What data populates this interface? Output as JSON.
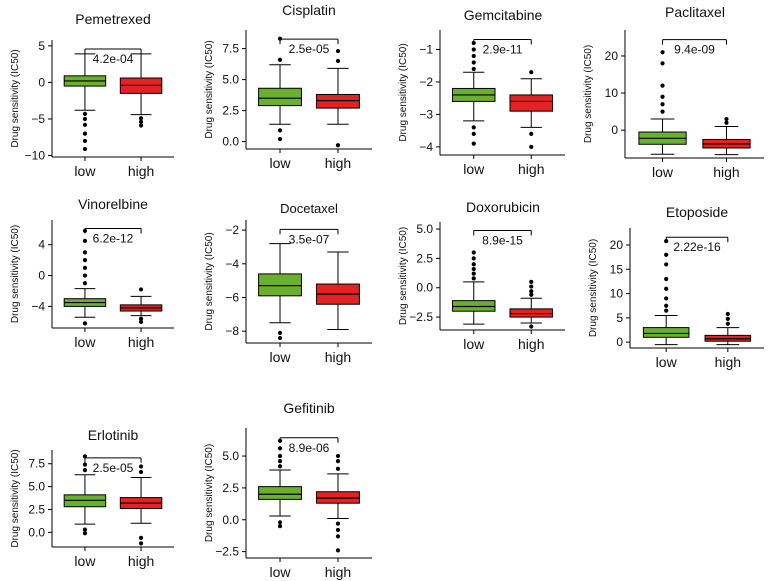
{
  "figure": {
    "ylabel": "Drug sensitivity (IC50)",
    "group_labels": [
      "low",
      "high"
    ],
    "colors": {
      "low": "#6aaf2e",
      "high": "#e32221"
    }
  },
  "chart_data": [
    {
      "type": "box",
      "title": "Pemetrexed",
      "pvalue": "4.2e-04",
      "categories": [
        "low",
        "high"
      ],
      "ylabel": "Drug sensitivity (IC50)",
      "yticks": [
        5,
        0,
        -5,
        -10
      ],
      "ytick_labels": [
        "5",
        "0",
        "−5",
        "−10"
      ],
      "ylim": [
        -10.2,
        5.8
      ],
      "boxes": [
        {
          "group": "low",
          "q1": -0.5,
          "median": 0.2,
          "q3": 0.9,
          "whisker_low": -3.8,
          "whisker_high": 3.9,
          "outliers": [
            -4.3,
            -5,
            -5.8,
            -7,
            -8,
            -9.1
          ]
        },
        {
          "group": "high",
          "q1": -1.5,
          "median": -0.4,
          "q3": 0.6,
          "whisker_low": -4.4,
          "whisker_high": 3.9,
          "outliers": [
            -4.9,
            -5.4,
            -5.9
          ]
        }
      ]
    },
    {
      "type": "box",
      "title": "Cisplatin",
      "pvalue": "2.5e-05",
      "categories": [
        "low",
        "high"
      ],
      "ylabel": "Drug sensitivity (IC50)",
      "yticks": [
        7.5,
        5.0,
        2.5,
        0.0
      ],
      "ytick_labels": [
        "7.5",
        "5.0",
        "2.5",
        "0.0"
      ],
      "ylim": [
        -0.6,
        9
      ],
      "boxes": [
        {
          "group": "low",
          "q1": 2.9,
          "median": 3.5,
          "q3": 4.3,
          "whisker_low": 1.4,
          "whisker_high": 6.2,
          "outliers": [
            6.6,
            8.3,
            0.9,
            0.2
          ]
        },
        {
          "group": "high",
          "q1": 2.7,
          "median": 3.3,
          "q3": 3.8,
          "whisker_low": 1.4,
          "whisker_high": 5.9,
          "outliers": [
            6.5,
            7.3,
            -0.3
          ]
        }
      ]
    },
    {
      "type": "box",
      "title": "Gemcitabine",
      "pvalue": "2.9e-11",
      "categories": [
        "low",
        "high"
      ],
      "ylabel": "Drug sensitivity (IC50)",
      "yticks": [
        -1,
        -2,
        -3,
        -4
      ],
      "ytick_labels": [
        "−1",
        "−2",
        "−3",
        "−4"
      ],
      "ylim": [
        -4.25,
        -0.4
      ],
      "boxes": [
        {
          "group": "low",
          "q1": -2.6,
          "median": -2.4,
          "q3": -2.2,
          "whisker_low": -3.2,
          "whisker_high": -1.7,
          "outliers": [
            -1.6,
            -1.4,
            -1.2,
            -1.0,
            -0.8,
            -3.4,
            -3.6,
            -3.9
          ]
        },
        {
          "group": "high",
          "q1": -2.9,
          "median": -2.6,
          "q3": -2.4,
          "whisker_low": -3.4,
          "whisker_high": -1.9,
          "outliers": [
            -1.7,
            -3.6,
            -4.0
          ]
        }
      ]
    },
    {
      "type": "box",
      "title": "Paclitaxel",
      "pvalue": "9.4e-09",
      "categories": [
        "low",
        "high"
      ],
      "ylabel": "Drug sensitivity (IC50)",
      "yticks": [
        20,
        10,
        0
      ],
      "ytick_labels": [
        "20",
        "10",
        "0"
      ],
      "ylim": [
        -7.5,
        27
      ],
      "boxes": [
        {
          "group": "low",
          "q1": -3.8,
          "median": -2.2,
          "q3": -0.5,
          "whisker_low": -6.5,
          "whisker_high": 3,
          "outliers": [
            5,
            7,
            9,
            12,
            18,
            21
          ]
        },
        {
          "group": "high",
          "q1": -4.8,
          "median": -3.7,
          "q3": -2.5,
          "whisker_low": -6.6,
          "whisker_high": 1,
          "outliers": [
            2,
            3
          ]
        }
      ]
    },
    {
      "type": "box",
      "title": "Vinorelbine",
      "pvalue": "6.2e-12",
      "categories": [
        "low",
        "high"
      ],
      "ylabel": "Drug sensitivity (IC50)",
      "yticks": [
        4,
        0,
        -4
      ],
      "ytick_labels": [
        "4",
        "0",
        "−4"
      ],
      "ylim": [
        -6.8,
        7.2
      ],
      "boxes": [
        {
          "group": "low",
          "q1": -4.0,
          "median": -3.5,
          "q3": -3.0,
          "whisker_low": -5.4,
          "whisker_high": -1.7,
          "outliers": [
            -1,
            0,
            1,
            2,
            3,
            4.5,
            5.8,
            -6.2
          ]
        },
        {
          "group": "high",
          "q1": -4.6,
          "median": -4.2,
          "q3": -3.8,
          "whisker_low": -5.2,
          "whisker_high": -2.7,
          "outliers": [
            -1.8,
            -5.6,
            -6.0
          ]
        }
      ]
    },
    {
      "type": "box",
      "title": "Docetaxel",
      "pvalue": "3.5e-07",
      "categories": [
        "low",
        "high"
      ],
      "ylabel": "Drug sensitivity (IC50)",
      "yticks": [
        -2,
        -4,
        -6,
        -8
      ],
      "ytick_labels": [
        "−2",
        "−4",
        "−6",
        "−8"
      ],
      "ylim": [
        -8.7,
        -1.4
      ],
      "boxes": [
        {
          "group": "low",
          "q1": -5.9,
          "median": -5.3,
          "q3": -4.6,
          "whisker_low": -7.5,
          "whisker_high": -2.8,
          "outliers": [
            -8.1,
            -8.4
          ]
        },
        {
          "group": "high",
          "q1": -6.4,
          "median": -5.8,
          "q3": -5.2,
          "whisker_low": -7.9,
          "whisker_high": -3.3,
          "outliers": []
        }
      ]
    },
    {
      "type": "box",
      "title": "Doxorubicin",
      "pvalue": "8.9e-15",
      "categories": [
        "low",
        "high"
      ],
      "ylabel": "Drug sensitivity (IC50)",
      "yticks": [
        5.0,
        2.5,
        0.0,
        -2.5
      ],
      "ytick_labels": [
        "5.0",
        "2.5",
        "0.0",
        "−2.5"
      ],
      "ylim": [
        -3.6,
        5.6
      ],
      "boxes": [
        {
          "group": "low",
          "q1": -2.0,
          "median": -1.6,
          "q3": -1.1,
          "whisker_low": -3.1,
          "whisker_high": 0.5,
          "outliers": [
            0.8,
            1.2,
            1.6,
            2.0,
            2.5,
            3.0
          ]
        },
        {
          "group": "high",
          "q1": -2.5,
          "median": -2.2,
          "q3": -1.8,
          "whisker_low": -3.0,
          "whisker_high": -0.9,
          "outliers": [
            -0.6,
            -0.3,
            0.1,
            0.5,
            -3.3
          ]
        }
      ]
    },
    {
      "type": "box",
      "title": "Etoposide",
      "pvalue": "2.22e-16",
      "categories": [
        "low",
        "high"
      ],
      "ylabel": "Drug sensitivity (IC50)",
      "yticks": [
        20,
        15,
        10,
        5,
        0
      ],
      "ytick_labels": [
        "20",
        "15",
        "10",
        "5",
        "0"
      ],
      "ylim": [
        -1.2,
        23.5
      ],
      "boxes": [
        {
          "group": "low",
          "q1": 1.0,
          "median": 1.8,
          "q3": 3.0,
          "whisker_low": -0.5,
          "whisker_high": 5.5,
          "outliers": [
            6.5,
            7.5,
            9,
            11,
            13,
            16,
            18,
            20.8
          ]
        },
        {
          "group": "high",
          "q1": 0.2,
          "median": 0.7,
          "q3": 1.4,
          "whisker_low": -0.5,
          "whisker_high": 3.0,
          "outliers": [
            3.8,
            4.8,
            5.8
          ]
        }
      ]
    },
    {
      "type": "box",
      "title": "Erlotinib",
      "pvalue": "2.5e-05",
      "categories": [
        "low",
        "high"
      ],
      "ylabel": "Drug sensitivity (IC50)",
      "yticks": [
        7.5,
        5.0,
        2.5,
        0.0
      ],
      "ytick_labels": [
        "7.5",
        "5.0",
        "2.5",
        "0.0"
      ],
      "ylim": [
        -1.6,
        9.0
      ],
      "boxes": [
        {
          "group": "low",
          "q1": 2.8,
          "median": 3.5,
          "q3": 4.1,
          "whisker_low": 0.9,
          "whisker_high": 6.3,
          "outliers": [
            6.8,
            7.4,
            8.3,
            0.3,
            -0.1
          ]
        },
        {
          "group": "high",
          "q1": 2.6,
          "median": 3.2,
          "q3": 3.8,
          "whisker_low": 1.0,
          "whisker_high": 6.0,
          "outliers": [
            6.6,
            7.2,
            -0.6,
            -1.2
          ]
        }
      ]
    },
    {
      "type": "box",
      "title": "Gefitinib",
      "pvalue": "8.9e-06",
      "categories": [
        "low",
        "high"
      ],
      "ylabel": "Drug sensitivity (IC50)",
      "yticks": [
        5.0,
        2.5,
        0.0,
        -2.5
      ],
      "ytick_labels": [
        "5.0",
        "2.5",
        "0.0",
        "−2.5"
      ],
      "ylim": [
        -3.0,
        7.2
      ],
      "boxes": [
        {
          "group": "low",
          "q1": 1.6,
          "median": 2.0,
          "q3": 2.6,
          "whisker_low": 0.3,
          "whisker_high": 3.9,
          "outliers": [
            4.2,
            4.6,
            5.0,
            5.6,
            6.2,
            -0.2,
            -0.5
          ]
        },
        {
          "group": "high",
          "q1": 1.3,
          "median": 1.7,
          "q3": 2.2,
          "whisker_low": 0.1,
          "whisker_high": 3.6,
          "outliers": [
            4.0,
            4.6,
            5.0,
            -0.3,
            -0.8,
            -1.3,
            -2.4
          ]
        }
      ]
    }
  ]
}
